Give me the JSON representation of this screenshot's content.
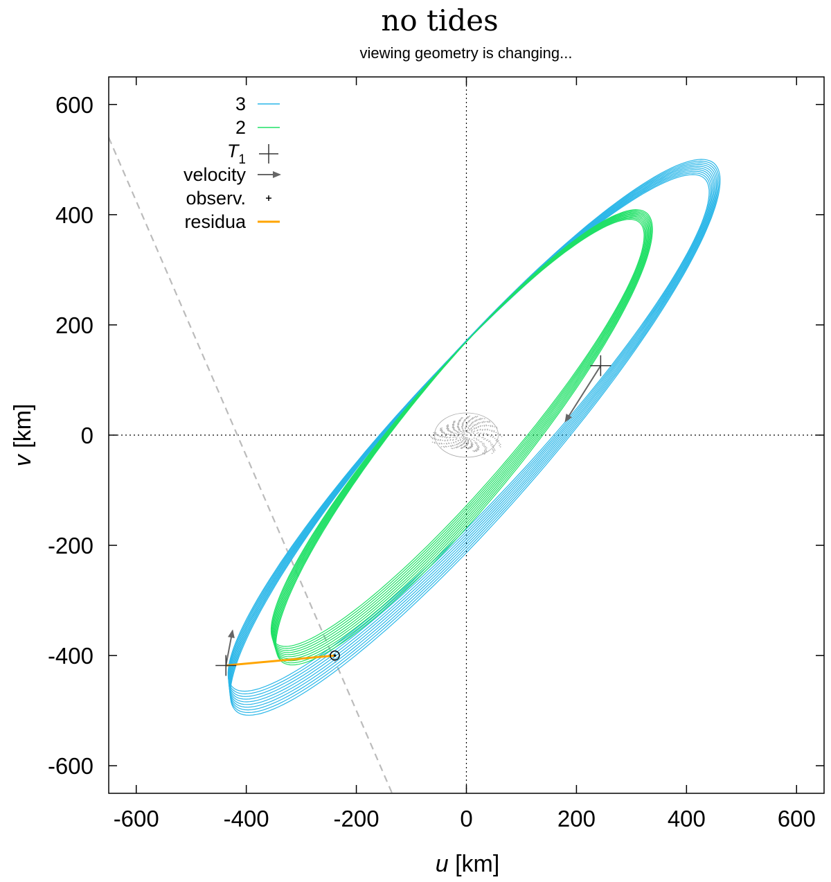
{
  "chart_data": {
    "type": "line",
    "title": "no tides",
    "subtitle": "viewing geometry is changing...",
    "xlabel": {
      "var": "u",
      "unit": "[km]"
    },
    "ylabel": {
      "var": "v",
      "unit": "[km]"
    },
    "xlim": [
      -650,
      650
    ],
    "ylim": [
      -650,
      650
    ],
    "xticks": [
      -600,
      -400,
      -200,
      0,
      200,
      400,
      600
    ],
    "yticks": [
      -600,
      -400,
      -200,
      0,
      200,
      400,
      600
    ],
    "xtick_labels": [
      "-600",
      "-400",
      "-200",
      "0",
      "200",
      "400",
      "600"
    ],
    "ytick_labels": [
      "-600",
      "-400",
      "-200",
      "0",
      "200",
      "400",
      "600"
    ],
    "grid": false,
    "zero_lines": true,
    "legend_position": "top-left",
    "legend": [
      {
        "label": "3",
        "kind": "line",
        "color": "#29b6e8"
      },
      {
        "label": "2",
        "kind": "line",
        "color": "#1fe066"
      },
      {
        "label_main": "T",
        "label_sub": "1",
        "kind": "cross",
        "color": "#333333"
      },
      {
        "label": "velocity",
        "kind": "arrow",
        "color": "#666666"
      },
      {
        "label": "observ.",
        "kind": "dot",
        "color": "#000000"
      },
      {
        "label": "residua",
        "kind": "line",
        "color": "#ffa500"
      }
    ],
    "series": [
      {
        "name": "3",
        "color": "#29b6e8",
        "shape": "ellipse",
        "center": [
          10,
          0
        ],
        "semi_major_axes": [
          630,
          660
        ],
        "semi_minor_axes": [
          118,
          130
        ],
        "angle_deg": 48,
        "loops": 10
      },
      {
        "name": "2",
        "color": "#1fe066",
        "shape": "ellipse",
        "center": [
          -10,
          0
        ],
        "semi_major_axes": [
          505,
          525
        ],
        "semi_minor_axes": [
          100,
          110
        ],
        "angle_deg": 50,
        "loops": 10
      }
    ],
    "T1_points": [
      [
        244,
        126
      ],
      [
        -437,
        -418
      ]
    ],
    "velocity_arrows": [
      {
        "from": [
          244,
          126
        ],
        "to": [
          180,
          25
        ]
      },
      {
        "from": [
          -437,
          -418
        ],
        "to": [
          -425,
          -355
        ]
      }
    ],
    "observation": [
      -239,
      -400
    ],
    "residua": {
      "from": [
        -437,
        -418
      ],
      "to": [
        -239,
        -400
      ],
      "color": "#ffa500"
    },
    "sky_plane_line": {
      "from": [
        -650,
        540
      ],
      "to": [
        -135,
        -650
      ],
      "color": "#bbbbbb",
      "style": "dashed"
    },
    "shape_model": {
      "center": [
        0,
        0
      ],
      "color": "#aaaaaa"
    }
  }
}
